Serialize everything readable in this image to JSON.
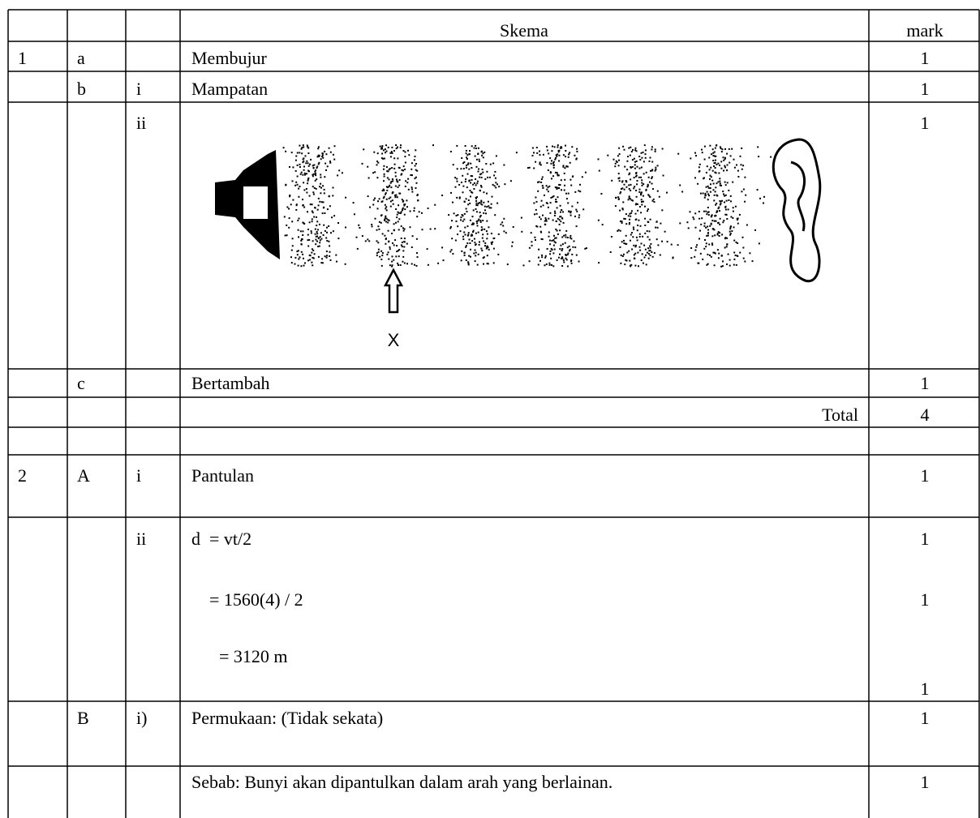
{
  "header": {
    "skema": "Skema",
    "mark": "mark"
  },
  "rows": [
    {
      "no": "1",
      "part": "a",
      "text": "Membujur",
      "mark": "1"
    },
    {
      "part": "b",
      "sub": "i",
      "text": "Mampatan",
      "mark": "1"
    },
    {
      "sub": "ii",
      "figure_label": "X",
      "mark": "1"
    },
    {
      "part": "c",
      "text": "Bertambah",
      "mark": "1"
    },
    {
      "total_label": "Total",
      "mark": "4"
    },
    {
      "no": "2",
      "part": "A",
      "sub": "i",
      "text": "Pantulan",
      "mark": "1"
    },
    {
      "sub": "ii",
      "lines": [
        "d  = vt/2",
        "= 1560(4) / 2",
        "= 3120 m"
      ],
      "marks": [
        "1",
        "1",
        "1"
      ]
    },
    {
      "part": "B",
      "sub": "i)",
      "text": "Permukaan: (Tidak sekata)",
      "mark": "1"
    },
    {
      "text": "Sebab: Bunyi akan dipantulkan dalam arah yang berlainan.",
      "mark": "1"
    }
  ]
}
